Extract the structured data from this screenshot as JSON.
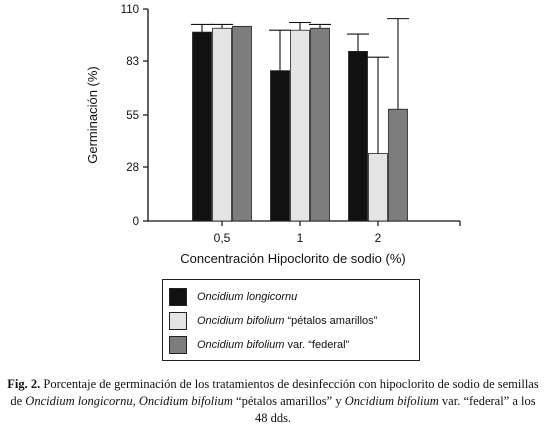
{
  "chart_data": {
    "type": "bar",
    "xlabel": "Concentración Hipoclorito de sodio (%)",
    "ylabel": "Germinación (%)",
    "ylim": [
      0,
      110
    ],
    "yticks": [
      0,
      28,
      55,
      83,
      110
    ],
    "categories": [
      "0,5",
      "1",
      "2"
    ],
    "series": [
      {
        "name": "Oncidium longicornu",
        "color": "#111111",
        "values": [
          98,
          78,
          88
        ],
        "error_upper": [
          4,
          21,
          9
        ]
      },
      {
        "name": "Oncidium bifolium “pétalos amarillos”",
        "color": "#e4e4e4",
        "values": [
          100,
          99,
          35
        ],
        "error_upper": [
          2,
          4,
          50
        ]
      },
      {
        "name": "Oncidium bifolium var. “federal”",
        "color": "#7d7d7d",
        "values": [
          101,
          100,
          58
        ],
        "error_upper": [
          0,
          2,
          47
        ]
      }
    ],
    "legend_position": "below"
  },
  "legend": {
    "items": [
      {
        "name_italic": "Oncidium longicornu",
        "suffix": ""
      },
      {
        "name_italic": "Oncidium bifolium",
        "suffix": " “pétalos amarillos”"
      },
      {
        "name_italic": "Oncidium bifolium",
        "suffix": " var. “federal”"
      }
    ]
  },
  "caption": {
    "label": "Fig. 2.",
    "part1": " Porcentaje de germinación de los tratamientos de desinfección con hipoclorito de sodio de semillas de ",
    "sp1": "Oncidium longicornu, Oncidium bifolium",
    "part2": " “pétalos amarillos” y ",
    "sp2": "Oncidium bifolium",
    "part3": " var. “federal” a los 48 dds."
  }
}
